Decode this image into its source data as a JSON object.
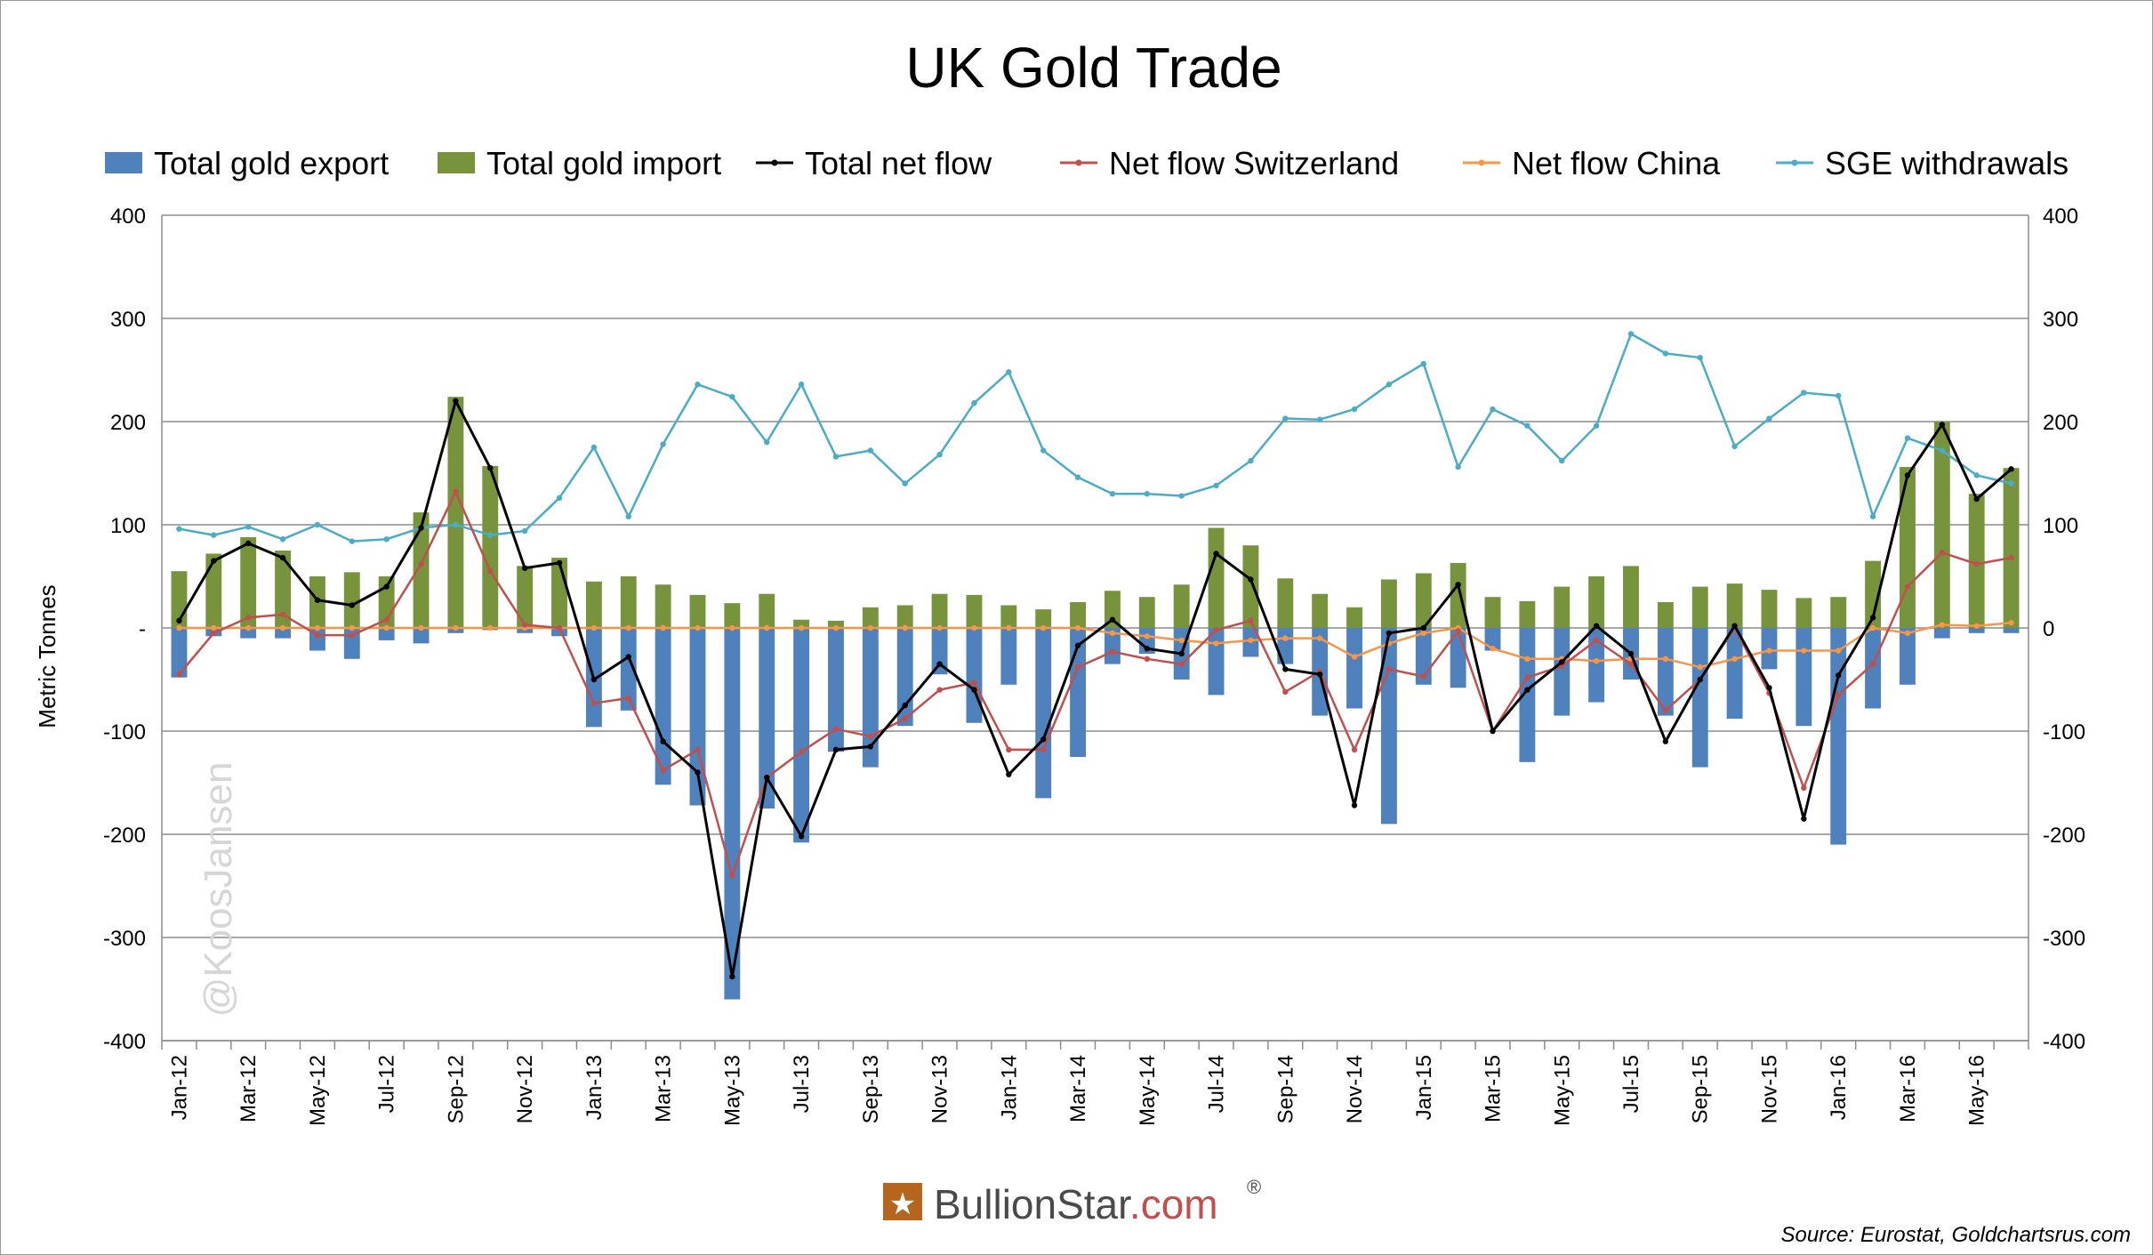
{
  "chart_data": {
    "type": "bar+line",
    "title": "UK Gold Trade",
    "ylabel": "Metric Tonnes",
    "ylim": [
      -400,
      400
    ],
    "yticks": [
      "400",
      "300",
      "200",
      "100",
      "-",
      "-100",
      "-200",
      "-300",
      "-400"
    ],
    "y2ticks": [
      "400",
      "300",
      "200",
      "100",
      "0",
      "-100",
      "-200",
      "-300",
      "-400"
    ],
    "x": [
      "Jan-12",
      "Feb-12",
      "Mar-12",
      "Apr-12",
      "May-12",
      "Jun-12",
      "Jul-12",
      "Aug-12",
      "Sep-12",
      "Oct-12",
      "Nov-12",
      "Dec-12",
      "Jan-13",
      "Feb-13",
      "Mar-13",
      "Apr-13",
      "May-13",
      "Jun-13",
      "Jul-13",
      "Aug-13",
      "Sep-13",
      "Oct-13",
      "Nov-13",
      "Dec-13",
      "Jan-14",
      "Feb-14",
      "Mar-14",
      "Apr-14",
      "May-14",
      "Jun-14",
      "Jul-14",
      "Aug-14",
      "Sep-14",
      "Oct-14",
      "Nov-14",
      "Dec-14",
      "Jan-15",
      "Feb-15",
      "Mar-15",
      "Apr-15",
      "May-15",
      "Jun-15",
      "Jul-15",
      "Aug-15",
      "Sep-15",
      "Oct-15",
      "Nov-15",
      "Dec-15",
      "Jan-16",
      "Feb-16",
      "Mar-16",
      "Apr-16",
      "May-16",
      "Jun-16"
    ],
    "x_tick_labels": [
      "Jan-12",
      "Mar-12",
      "May-12",
      "Jul-12",
      "Sep-12",
      "Nov-12",
      "Jan-13",
      "Mar-13",
      "May-13",
      "Jul-13",
      "Sep-13",
      "Nov-13",
      "Jan-14",
      "Mar-14",
      "May-14",
      "Jul-14",
      "Sep-14",
      "Nov-14",
      "Jan-15",
      "Mar-15",
      "May-15",
      "Jul-15",
      "Sep-15",
      "Nov-15",
      "Jan-16",
      "Mar-16",
      "May-16"
    ],
    "legend_position": "top",
    "grid": true,
    "series": [
      {
        "name": "Total gold export",
        "kind": "bar",
        "color": "#4f81bd",
        "values": [
          -48,
          -8,
          -10,
          -10,
          -22,
          -30,
          -12,
          -15,
          -5,
          -2,
          -5,
          -8,
          -96,
          -80,
          -152,
          -172,
          -360,
          -175,
          -208,
          -120,
          -135,
          -95,
          -45,
          -92,
          -55,
          -165,
          -125,
          -35,
          -25,
          -50,
          -65,
          -28,
          -35,
          -85,
          -78,
          -190,
          -55,
          -58,
          -22,
          -130,
          -85,
          -72,
          -50,
          -85,
          -135,
          -88,
          -40,
          -95,
          -210,
          -78,
          -55,
          -10,
          -5,
          -5
        ]
      },
      {
        "name": "Total gold import",
        "kind": "bar",
        "color": "#77933c",
        "values": [
          55,
          72,
          88,
          75,
          50,
          54,
          50,
          112,
          224,
          157,
          60,
          68,
          45,
          50,
          42,
          32,
          24,
          33,
          8,
          7,
          20,
          22,
          33,
          32,
          22,
          18,
          25,
          36,
          30,
          42,
          97,
          80,
          48,
          33,
          20,
          47,
          53,
          63,
          30,
          26,
          40,
          50,
          60,
          25,
          40,
          43,
          37,
          29,
          30,
          65,
          156,
          200,
          130,
          155
        ]
      },
      {
        "name": "Total net flow",
        "kind": "line",
        "color": "#000000",
        "values": [
          7,
          65,
          82,
          68,
          27,
          22,
          40,
          97,
          220,
          155,
          58,
          63,
          -50,
          -28,
          -110,
          -140,
          -338,
          -145,
          -202,
          -118,
          -115,
          -75,
          -35,
          -60,
          -142,
          -108,
          -17,
          8,
          -20,
          -25,
          72,
          47,
          -40,
          -45,
          -172,
          -5,
          0,
          42,
          -100,
          -60,
          -33,
          2,
          -25,
          -110,
          -50,
          2,
          -58,
          -185,
          -46,
          10,
          148,
          197,
          125,
          154
        ]
      },
      {
        "name": "Net flow Switzerland",
        "kind": "line",
        "color": "#c0504d",
        "values": [
          -45,
          -5,
          10,
          13,
          -7,
          -7,
          8,
          62,
          132,
          55,
          3,
          0,
          -73,
          -68,
          -138,
          -118,
          -240,
          -145,
          -120,
          -98,
          -105,
          -88,
          -60,
          -53,
          -118,
          -118,
          -38,
          -23,
          -30,
          -35,
          -2,
          7,
          -62,
          -42,
          -118,
          -40,
          -47,
          -3,
          -100,
          -48,
          -37,
          -12,
          -35,
          -80,
          -50,
          0,
          -63,
          -155,
          -65,
          -35,
          40,
          73,
          62,
          68
        ]
      },
      {
        "name": "Net flow China",
        "kind": "line",
        "color": "#f79646",
        "values": [
          0,
          0,
          0,
          0,
          0,
          0,
          0,
          0,
          0,
          0,
          0,
          0,
          0,
          0,
          0,
          0,
          0,
          0,
          0,
          0,
          0,
          0,
          0,
          0,
          0,
          0,
          0,
          -5,
          -8,
          -12,
          -15,
          -12,
          -10,
          -10,
          -28,
          -15,
          -5,
          0,
          -20,
          -30,
          -30,
          -32,
          -30,
          -30,
          -38,
          -30,
          -22,
          -22,
          -22,
          0,
          -5,
          3,
          2,
          5
        ]
      },
      {
        "name": "SGE withdrawals",
        "kind": "line",
        "color": "#4bacc6",
        "values": [
          96,
          90,
          98,
          86,
          100,
          84,
          86,
          97,
          100,
          90,
          94,
          126,
          175,
          108,
          178,
          236,
          224,
          180,
          236,
          166,
          172,
          140,
          168,
          218,
          248,
          172,
          146,
          130,
          130,
          128,
          138,
          162,
          203,
          202,
          212,
          236,
          256,
          156,
          212,
          196,
          162,
          196,
          285,
          266,
          262,
          176,
          203,
          228,
          225,
          108,
          184,
          172,
          148,
          140
        ]
      }
    ]
  },
  "watermark": "@KoosJansen",
  "brand": {
    "name_main": "BullionStar",
    "name_suffix": ".com",
    "registered": "®",
    "logo_glyph": "★"
  },
  "source": "Source: Eurostat, Goldchartsrus.com"
}
